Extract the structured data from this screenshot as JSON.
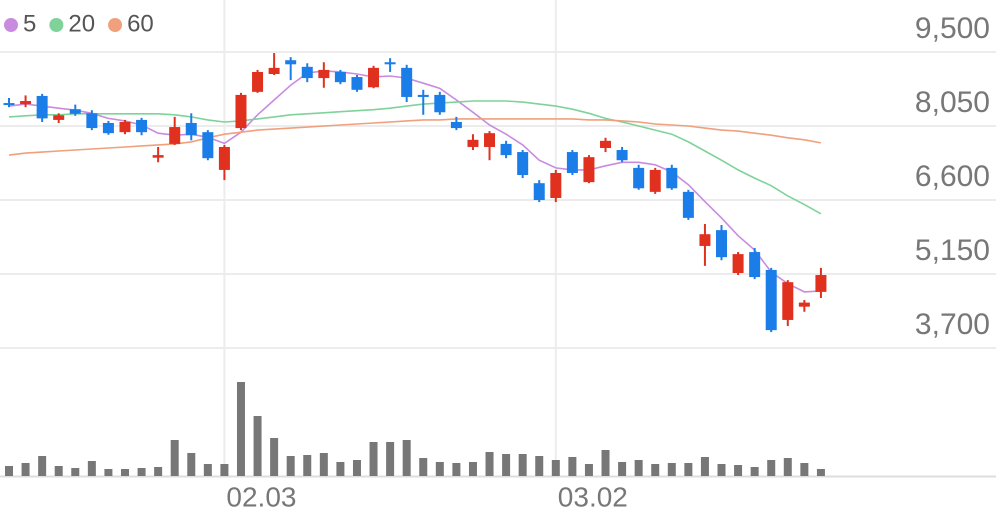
{
  "chart_data": {
    "type": "candlestick",
    "categories": [
      null,
      null,
      null,
      null,
      null,
      null,
      null,
      null,
      null,
      null,
      null,
      null,
      null,
      "02.03",
      null,
      null,
      null,
      null,
      null,
      null,
      null,
      null,
      null,
      null,
      null,
      null,
      null,
      null,
      null,
      null,
      null,
      null,
      null,
      "03.02",
      null,
      null,
      null,
      null,
      null,
      null,
      null,
      null,
      null,
      null,
      null,
      null,
      null,
      null,
      null,
      null
    ],
    "open": [
      8500,
      8480,
      8640,
      8170,
      8380,
      8300,
      8110,
      7930,
      8170,
      7430,
      7700,
      8110,
      7930,
      7190,
      8010,
      8720,
      9070,
      9340,
      9210,
      8990,
      9110,
      9010,
      8810,
      9300,
      9190,
      8660,
      8660,
      8130,
      7640,
      7640,
      7700,
      7540,
      6930,
      6640,
      7540,
      6950,
      7620,
      7580,
      7230,
      6760,
      7230,
      6760,
      5700,
      6010,
      5170,
      5580,
      5230,
      4250,
      4510,
      4800
    ],
    "high": [
      8600,
      8650,
      8680,
      8300,
      8470,
      8360,
      8150,
      8170,
      8210,
      7640,
      8230,
      8300,
      7970,
      7680,
      8700,
      9150,
      9480,
      9400,
      9280,
      9300,
      9150,
      9050,
      9230,
      9380,
      9250,
      8760,
      8720,
      8230,
      7890,
      7950,
      7760,
      7580,
      6990,
      7190,
      7580,
      7480,
      7820,
      7640,
      7290,
      7230,
      7290,
      6800,
      6130,
      6110,
      5580,
      5660,
      5270,
      5030,
      4640,
      5270
    ],
    "low": [
      8420,
      8420,
      8130,
      8110,
      8250,
      7970,
      7880,
      7890,
      7870,
      7340,
      7680,
      7770,
      7380,
      6990,
      7970,
      8700,
      9050,
      8950,
      8910,
      8800,
      8870,
      8720,
      8790,
      9110,
      8520,
      8270,
      8270,
      7970,
      7580,
      7380,
      7420,
      7030,
      6560,
      6560,
      7090,
      6930,
      7540,
      7340,
      6800,
      6720,
      6800,
      6210,
      5310,
      5420,
      5130,
      5050,
      4010,
      4130,
      4410,
      4680
    ],
    "close": [
      8480,
      8540,
      8200,
      8260,
      8290,
      8010,
      7910,
      8130,
      7930,
      7480,
      8030,
      7870,
      7420,
      7640,
      8660,
      9110,
      9190,
      9260,
      8990,
      9150,
      8910,
      8760,
      9190,
      9260,
      8620,
      8620,
      8320,
      8010,
      7780,
      7910,
      7480,
      7090,
      6600,
      7130,
      7130,
      7440,
      7760,
      7380,
      6830,
      7190,
      6830,
      6250,
      5930,
      5480,
      5540,
      5090,
      4050,
      4990,
      4590,
      5130
    ],
    "up_color": "#e0301e",
    "down_color": "#1a7de8",
    "ylim": [
      3700,
      10520
    ],
    "yticks": [
      {
        "value": 3700,
        "label": "3,700"
      },
      {
        "value": 5150,
        "label": "5,150"
      },
      {
        "value": 6600,
        "label": "6,600"
      },
      {
        "value": 8050,
        "label": "8,050"
      },
      {
        "value": 9500,
        "label": "9,500"
      }
    ],
    "grid": true,
    "series": [
      {
        "name": "5",
        "color": "#c98be0",
        "values": [
          8440,
          8480,
          8440,
          8400,
          8360,
          8300,
          8200,
          8150,
          8070,
          7910,
          7870,
          7890,
          7830,
          7710,
          7930,
          8270,
          8560,
          8850,
          9090,
          9130,
          9110,
          9070,
          9010,
          9030,
          8990,
          8890,
          8790,
          8560,
          8320,
          8070,
          7890,
          7680,
          7380,
          7230,
          7190,
          7190,
          7270,
          7340,
          7340,
          7290,
          7150,
          6900,
          6570,
          6250,
          5900,
          5620,
          5190,
          4960,
          4800,
          4820
        ]
      },
      {
        "name": "20",
        "color": "#7fd39a",
        "values": [
          8230,
          8250,
          8270,
          8270,
          8290,
          8290,
          8290,
          8290,
          8290,
          8290,
          8270,
          8230,
          8170,
          8130,
          8150,
          8190,
          8230,
          8270,
          8290,
          8310,
          8330,
          8350,
          8370,
          8400,
          8440,
          8480,
          8500,
          8520,
          8540,
          8540,
          8540,
          8520,
          8480,
          8440,
          8380,
          8300,
          8200,
          8130,
          8050,
          7970,
          7890,
          7740,
          7560,
          7380,
          7190,
          7030,
          6880,
          6680,
          6510,
          6330
        ]
      },
      {
        "name": "60",
        "color": "#f0a07c",
        "values": [
          7480,
          7520,
          7540,
          7560,
          7580,
          7600,
          7620,
          7640,
          7660,
          7680,
          7700,
          7740,
          7820,
          7890,
          7930,
          7970,
          7990,
          8010,
          8030,
          8050,
          8070,
          8090,
          8110,
          8130,
          8150,
          8170,
          8170,
          8190,
          8190,
          8190,
          8190,
          8190,
          8190,
          8190,
          8190,
          8170,
          8170,
          8150,
          8130,
          8090,
          8070,
          8050,
          8010,
          7970,
          7950,
          7910,
          7870,
          7820,
          7780,
          7720
        ]
      }
    ],
    "volume": {
      "color": "#777777",
      "ylim": [
        0,
        126
      ],
      "values": [
        10,
        13,
        20,
        10,
        8,
        15,
        7,
        7,
        8,
        9,
        36,
        23,
        12,
        12,
        94,
        60,
        38,
        20,
        21,
        23,
        14,
        16,
        34,
        34,
        36,
        18,
        14,
        13,
        14,
        24,
        22,
        22,
        20,
        16,
        19,
        12,
        26,
        14,
        16,
        12,
        13,
        13,
        19,
        12,
        11,
        9,
        16,
        18,
        13,
        7
      ]
    }
  }
}
